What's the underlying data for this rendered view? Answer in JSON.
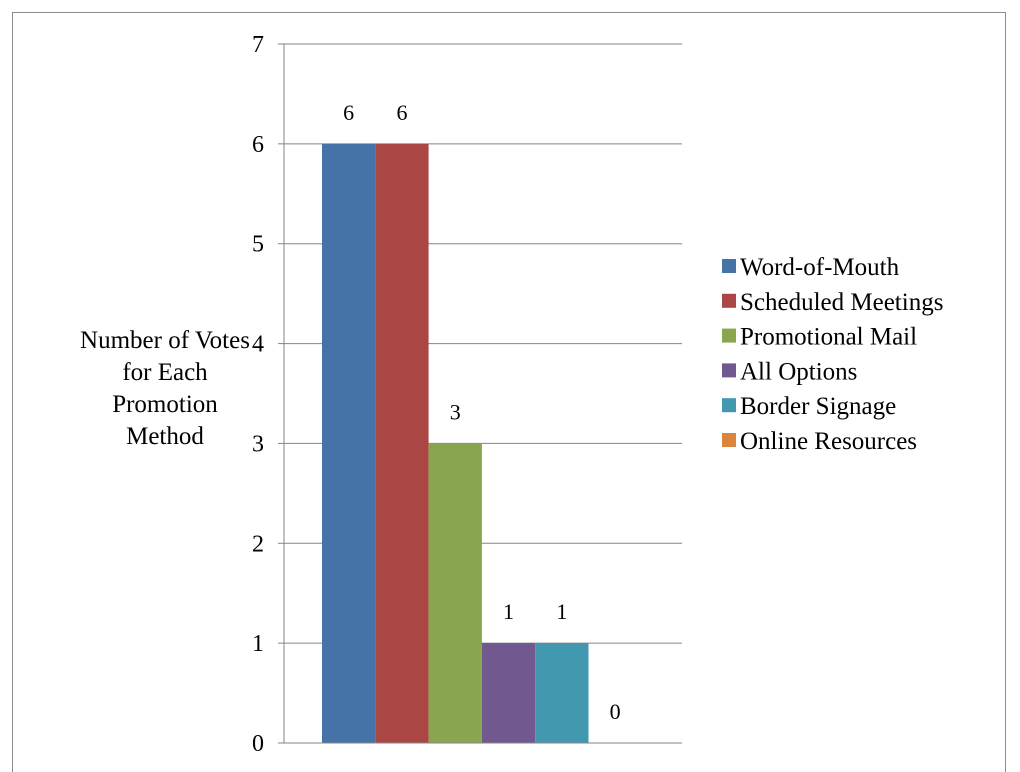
{
  "chart_data": {
    "type": "bar",
    "title": "",
    "ylabel": "Number of Votes for Each Promotion Method",
    "xlabel": "",
    "ylim": [
      0,
      7
    ],
    "yticks": [
      0,
      1,
      2,
      3,
      4,
      5,
      6,
      7
    ],
    "grid": true,
    "legend_position": "right",
    "series": [
      {
        "name": "Word-of-Mouth",
        "value": 6,
        "label": "6",
        "color": "#4572A7"
      },
      {
        "name": "Scheduled Meetings",
        "value": 6,
        "label": "6",
        "color": "#AA4643"
      },
      {
        "name": "Promotional Mail",
        "value": 3,
        "label": "3",
        "color": "#89A54E"
      },
      {
        "name": "All Options",
        "value": 1,
        "label": "1",
        "color": "#71588F"
      },
      {
        "name": "Border Signage",
        "value": 1,
        "label": "1",
        "color": "#4198AF"
      },
      {
        "name": "Online Resources",
        "value": 0,
        "label": "0",
        "color": "#DB843D"
      }
    ]
  }
}
